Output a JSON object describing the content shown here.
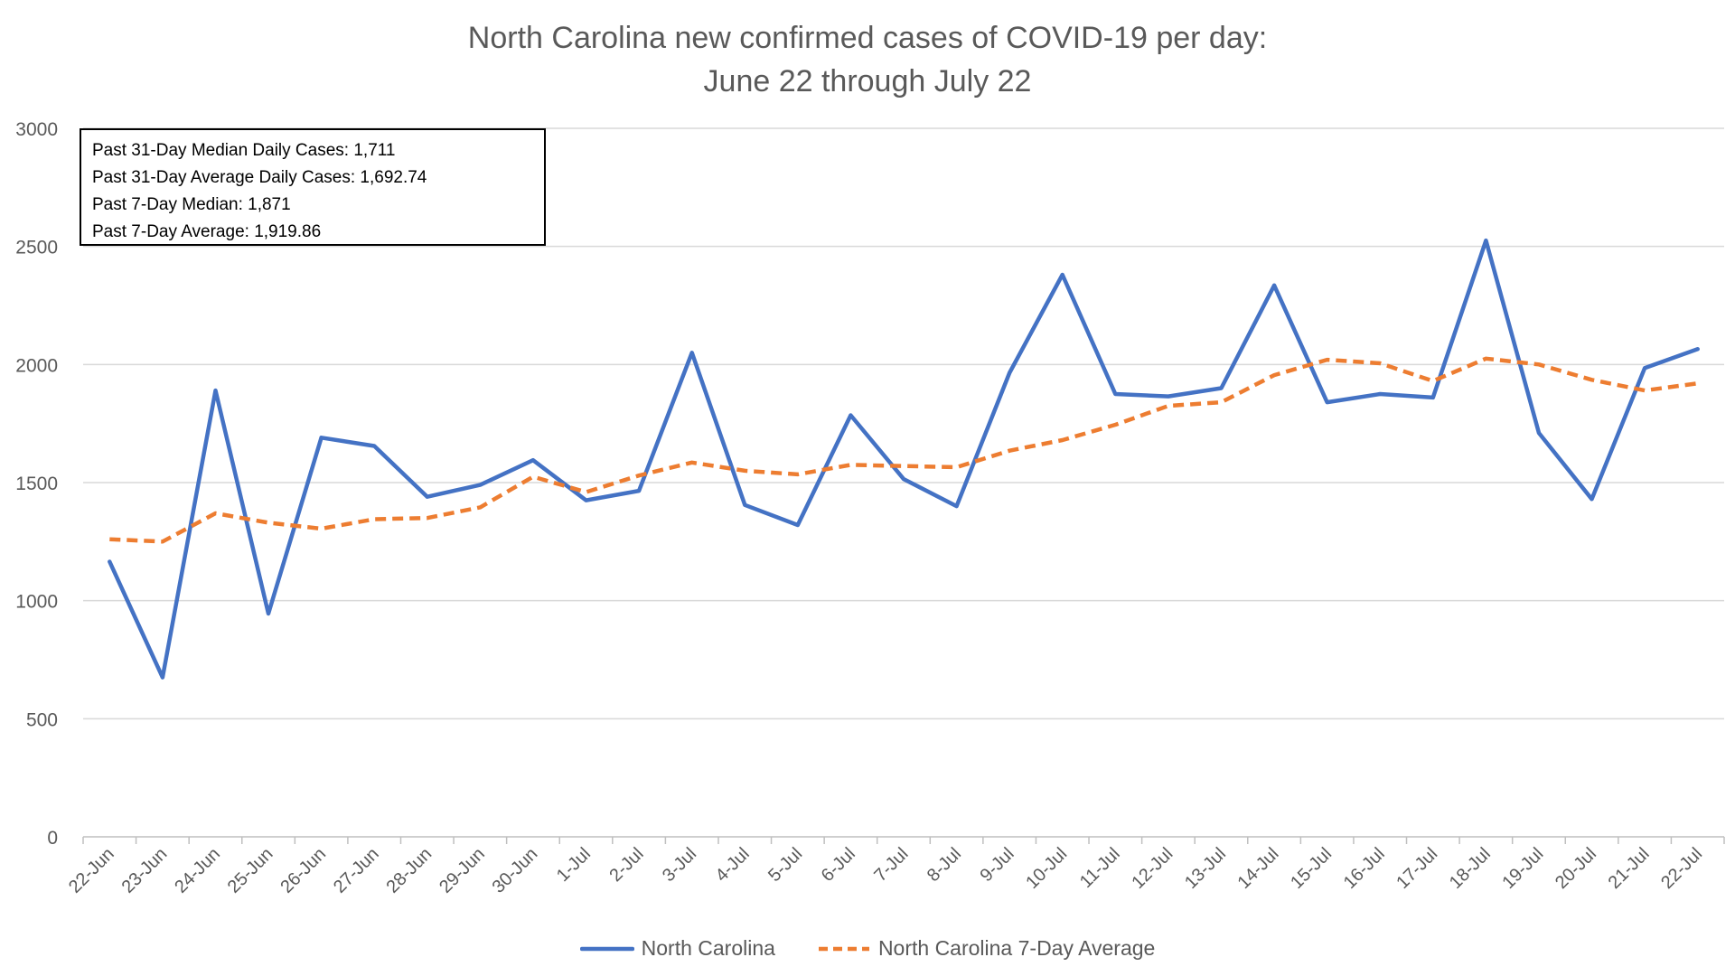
{
  "title": {
    "line1": "North Carolina new confirmed cases of COVID-19 per day:",
    "line2": "June 22 through July 22"
  },
  "stats_box": {
    "lines": [
      "Past 31-Day Median Daily Cases: 1,711",
      "Past 31-Day Average Daily Cases: 1,692.74",
      "Past 7-Day Median: 1,871",
      "Past 7-Day Average: 1,919.86"
    ]
  },
  "legend": {
    "series1": "North Carolina",
    "series2": "North Carolina 7-Day Average"
  },
  "colors": {
    "series1": "#4472C4",
    "series2": "#ED7D31",
    "grid": "#D9D9D9",
    "text": "#595959"
  },
  "chart_data": {
    "type": "line",
    "title": "North Carolina new confirmed cases of COVID-19 per day: June 22 through July 22",
    "xlabel": "",
    "ylabel": "",
    "ylim": [
      0,
      3000
    ],
    "yticks": [
      0,
      500,
      1000,
      1500,
      2000,
      2500,
      3000
    ],
    "grid": true,
    "legend_position": "bottom",
    "categories": [
      "22-Jun",
      "23-Jun",
      "24-Jun",
      "25-Jun",
      "26-Jun",
      "27-Jun",
      "28-Jun",
      "29-Jun",
      "30-Jun",
      "1-Jul",
      "2-Jul",
      "3-Jul",
      "4-Jul",
      "5-Jul",
      "6-Jul",
      "7-Jul",
      "8-Jul",
      "9-Jul",
      "10-Jul",
      "11-Jul",
      "12-Jul",
      "13-Jul",
      "14-Jul",
      "15-Jul",
      "16-Jul",
      "17-Jul",
      "18-Jul",
      "19-Jul",
      "20-Jul",
      "21-Jul",
      "22-Jul"
    ],
    "series": [
      {
        "name": "North Carolina",
        "style": "solid",
        "values": [
          1165,
          675,
          1890,
          945,
          1690,
          1655,
          1440,
          1490,
          1595,
          1425,
          1465,
          2050,
          1405,
          1320,
          1785,
          1515,
          1400,
          1965,
          2380,
          1875,
          1865,
          1900,
          2335,
          1840,
          1875,
          1860,
          2525,
          1710,
          1430,
          1985,
          2065
        ]
      },
      {
        "name": "North Carolina 7-Day Average",
        "style": "dashed",
        "values": [
          1260,
          1250,
          1370,
          1330,
          1305,
          1345,
          1350,
          1395,
          1525,
          1460,
          1530,
          1585,
          1550,
          1535,
          1575,
          1570,
          1565,
          1635,
          1680,
          1745,
          1825,
          1840,
          1955,
          2020,
          2005,
          1930,
          2025,
          2000,
          1935,
          1890,
          1920
        ]
      }
    ]
  }
}
